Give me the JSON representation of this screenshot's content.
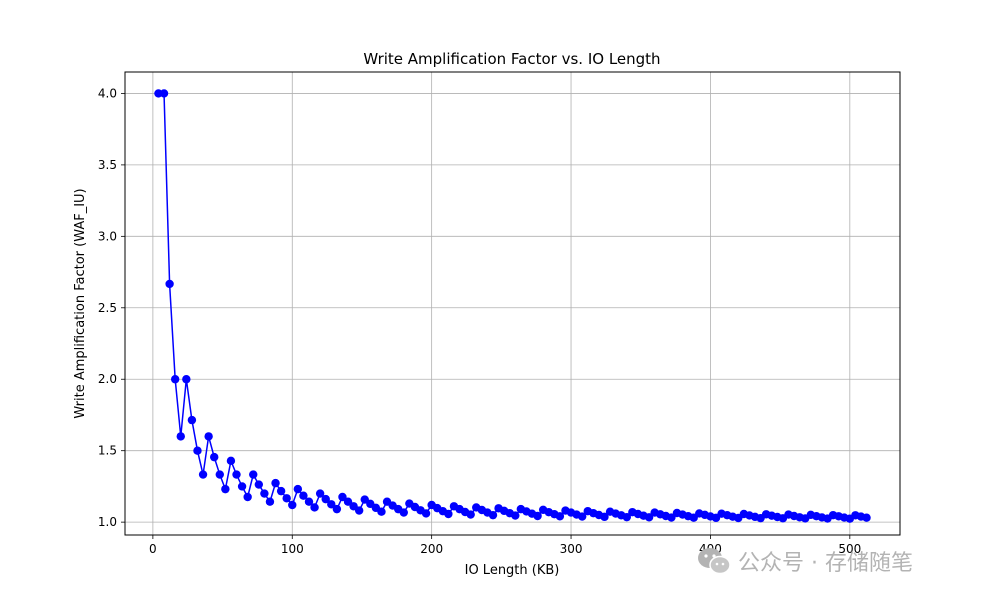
{
  "chart_data": {
    "type": "line",
    "title": "Write Amplification Factor vs. IO Length",
    "xlabel": "IO Length (KB)",
    "ylabel": "Write Amplification Factor (WAF_IU)",
    "xlim": [
      -20,
      536
    ],
    "ylim": [
      0.91,
      4.15
    ],
    "xticks": [
      0,
      100,
      200,
      300,
      400,
      500
    ],
    "yticks": [
      1.0,
      1.5,
      2.0,
      2.5,
      3.0,
      3.5,
      4.0
    ],
    "xtick_labels": [
      "0",
      "100",
      "200",
      "300",
      "400",
      "500"
    ],
    "ytick_labels": [
      "1.0",
      "1.5",
      "2.0",
      "2.5",
      "3.0",
      "3.5",
      "4.0"
    ],
    "grid": true,
    "marker": "circle",
    "series": [
      {
        "color": "#0000ff",
        "points": [
          [
            4,
            4.0
          ],
          [
            8,
            4.0
          ],
          [
            12,
            2.667
          ],
          [
            16,
            2.0
          ],
          [
            20,
            1.6
          ],
          [
            24,
            2.0
          ],
          [
            28,
            1.714
          ],
          [
            32,
            1.5
          ],
          [
            36,
            1.333
          ],
          [
            40,
            1.6
          ],
          [
            44,
            1.455
          ],
          [
            48,
            1.333
          ],
          [
            52,
            1.231
          ],
          [
            56,
            1.429
          ],
          [
            60,
            1.333
          ],
          [
            64,
            1.25
          ],
          [
            68,
            1.176
          ],
          [
            72,
            1.333
          ],
          [
            76,
            1.263
          ],
          [
            80,
            1.2
          ],
          [
            84,
            1.143
          ],
          [
            88,
            1.273
          ],
          [
            92,
            1.217
          ],
          [
            96,
            1.167
          ],
          [
            100,
            1.12
          ],
          [
            104,
            1.231
          ],
          [
            108,
            1.185
          ],
          [
            112,
            1.143
          ],
          [
            116,
            1.103
          ],
          [
            120,
            1.2
          ],
          [
            124,
            1.161
          ],
          [
            128,
            1.125
          ],
          [
            132,
            1.091
          ],
          [
            136,
            1.176
          ],
          [
            140,
            1.143
          ],
          [
            144,
            1.111
          ],
          [
            148,
            1.081
          ],
          [
            152,
            1.158
          ],
          [
            156,
            1.128
          ],
          [
            160,
            1.1
          ],
          [
            164,
            1.073
          ],
          [
            168,
            1.143
          ],
          [
            172,
            1.116
          ],
          [
            176,
            1.091
          ],
          [
            180,
            1.067
          ],
          [
            184,
            1.13
          ],
          [
            188,
            1.106
          ],
          [
            192,
            1.083
          ],
          [
            196,
            1.061
          ],
          [
            200,
            1.12
          ],
          [
            204,
            1.098
          ],
          [
            208,
            1.077
          ],
          [
            212,
            1.057
          ],
          [
            216,
            1.111
          ],
          [
            220,
            1.091
          ],
          [
            224,
            1.071
          ],
          [
            228,
            1.053
          ],
          [
            232,
            1.103
          ],
          [
            236,
            1.085
          ],
          [
            240,
            1.067
          ],
          [
            244,
            1.049
          ],
          [
            248,
            1.097
          ],
          [
            252,
            1.079
          ],
          [
            256,
            1.063
          ],
          [
            260,
            1.046
          ],
          [
            264,
            1.091
          ],
          [
            268,
            1.075
          ],
          [
            272,
            1.059
          ],
          [
            276,
            1.043
          ],
          [
            280,
            1.086
          ],
          [
            284,
            1.07
          ],
          [
            288,
            1.056
          ],
          [
            292,
            1.041
          ],
          [
            296,
            1.081
          ],
          [
            300,
            1.067
          ],
          [
            304,
            1.053
          ],
          [
            308,
            1.039
          ],
          [
            312,
            1.077
          ],
          [
            316,
            1.063
          ],
          [
            320,
            1.05
          ],
          [
            324,
            1.037
          ],
          [
            328,
            1.073
          ],
          [
            332,
            1.06
          ],
          [
            336,
            1.048
          ],
          [
            340,
            1.035
          ],
          [
            344,
            1.07
          ],
          [
            348,
            1.057
          ],
          [
            352,
            1.045
          ],
          [
            356,
            1.034
          ],
          [
            360,
            1.067
          ],
          [
            364,
            1.055
          ],
          [
            368,
            1.043
          ],
          [
            372,
            1.032
          ],
          [
            376,
            1.064
          ],
          [
            380,
            1.053
          ],
          [
            384,
            1.042
          ],
          [
            388,
            1.031
          ],
          [
            392,
            1.061
          ],
          [
            396,
            1.051
          ],
          [
            400,
            1.04
          ],
          [
            404,
            1.03
          ],
          [
            408,
            1.059
          ],
          [
            412,
            1.049
          ],
          [
            416,
            1.038
          ],
          [
            420,
            1.029
          ],
          [
            424,
            1.057
          ],
          [
            428,
            1.047
          ],
          [
            432,
            1.037
          ],
          [
            436,
            1.028
          ],
          [
            440,
            1.055
          ],
          [
            444,
            1.045
          ],
          [
            448,
            1.036
          ],
          [
            452,
            1.027
          ],
          [
            456,
            1.053
          ],
          [
            460,
            1.043
          ],
          [
            464,
            1.034
          ],
          [
            468,
            1.026
          ],
          [
            472,
            1.051
          ],
          [
            476,
            1.042
          ],
          [
            480,
            1.033
          ],
          [
            484,
            1.025
          ],
          [
            488,
            1.049
          ],
          [
            492,
            1.041
          ],
          [
            496,
            1.032
          ],
          [
            500,
            1.024
          ],
          [
            504,
            1.048
          ],
          [
            508,
            1.039
          ],
          [
            512,
            1.031
          ]
        ]
      }
    ]
  },
  "watermark": {
    "text": "公众号 · 存储随笔",
    "icon": "wechat-logo-icon"
  }
}
